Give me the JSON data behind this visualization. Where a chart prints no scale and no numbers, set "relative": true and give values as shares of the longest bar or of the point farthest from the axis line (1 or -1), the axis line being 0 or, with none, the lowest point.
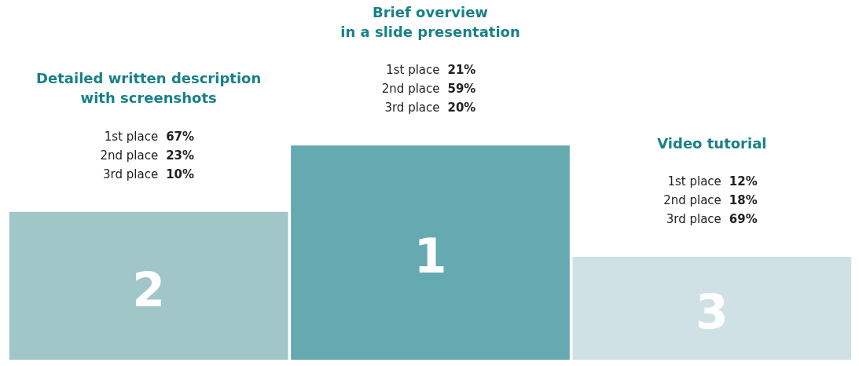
{
  "chart_data": {
    "type": "bar",
    "relative": true,
    "categories": [
      null,
      null,
      null
    ],
    "values": [
      0.69,
      1,
      0.48
    ],
    "colors": [
      "#a0c6c8",
      "#66aab1",
      "#cfe1e4"
    ],
    "legend": false,
    "annotations": [
      "Detailed written description\nwith screenshots",
      "1st place 67%",
      "2nd place 23%",
      "3rd place 10%",
      "2",
      "Brief overview\nin a slide presentation",
      "1st place 21%",
      "2nd place 59%",
      "3rd place 20%",
      "1",
      "Video tutorial",
      "1st place 12%",
      "2nd place 18%",
      "3rd place 69%",
      "3"
    ]
  }
}
